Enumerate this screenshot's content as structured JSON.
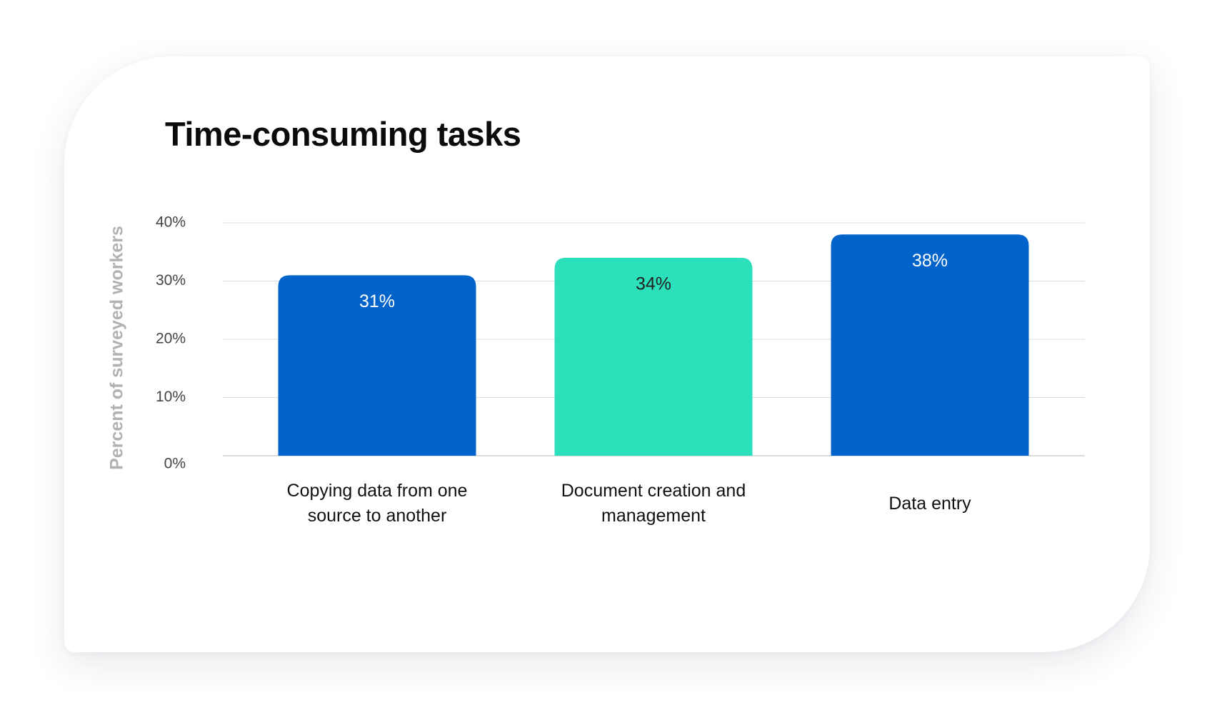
{
  "chart_data": {
    "type": "bar",
    "title": "Time-consuming tasks",
    "ylabel": "Percent of surveyed workers",
    "xlabel": "",
    "categories": [
      "Copying data from one source to another",
      "Document creation and management",
      "Data entry"
    ],
    "values": [
      31,
      34,
      38
    ],
    "value_labels": [
      "31%",
      "34%",
      "38%"
    ],
    "bar_colors": [
      "#0264CB",
      "#2CE0BC",
      "#0264CB"
    ],
    "value_label_colors": [
      "#ffffff",
      "#222222",
      "#ffffff"
    ],
    "ylim": [
      0,
      40
    ],
    "yticks": [
      0,
      10,
      20,
      30,
      40
    ],
    "ytick_labels": [
      "0%",
      "10%",
      "20%",
      "30%",
      "40%"
    ],
    "grid": true,
    "legend": "none"
  }
}
